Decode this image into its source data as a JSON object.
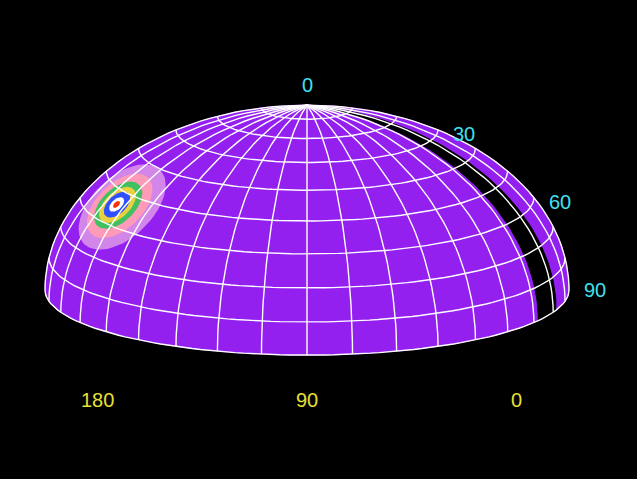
{
  "chart_data": {
    "type": "sky_map",
    "lon_range": [
      0,
      180
    ],
    "colat_range": [
      0,
      90
    ],
    "lon_ticks": [
      180,
      90,
      0
    ],
    "lat_ticks": [
      0,
      30,
      60,
      90
    ],
    "lon_lines": [
      0,
      10,
      20,
      30,
      40,
      50,
      60,
      70,
      80,
      90,
      100,
      110,
      120,
      130,
      140,
      150,
      160,
      170,
      180
    ],
    "colat_lines": [
      10,
      20,
      30,
      40,
      50,
      60,
      70,
      80,
      90
    ],
    "grid": true,
    "color": "#9420f0",
    "band": {
      "lon": [
        18,
        28
      ],
      "colat": [
        5,
        90
      ],
      "color": "#000000"
    },
    "hotspot": {
      "lon": 154,
      "colat": 54,
      "radius": 14,
      "colors": [
        "#e8a8e8",
        "#ff9ab8",
        "#40c060",
        "#e8d040",
        "#3050ff",
        "#ffffff",
        "#ff3000"
      ]
    }
  }
}
